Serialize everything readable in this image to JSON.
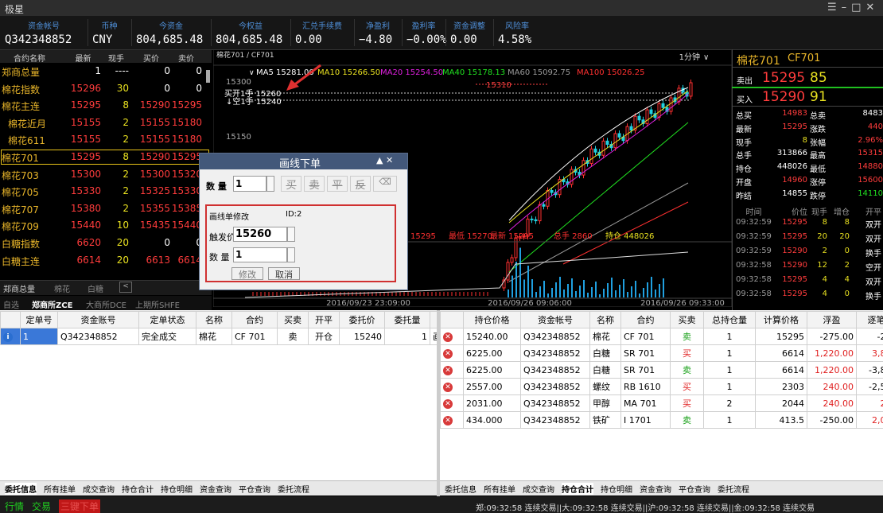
{
  "window": {
    "title": "极星"
  },
  "account": {
    "labels": [
      "资金帐号",
      "币种",
      "今资金",
      "今权益",
      "汇兑手续费",
      "净盈利",
      "盈利率",
      "资金调整",
      "风险率"
    ],
    "values": [
      "Q342348852",
      "CNY",
      "804,685.48",
      "804,685.48",
      "0.00",
      "−4.80",
      "−0.00%",
      "0.00",
      "4.58%"
    ]
  },
  "quotes": {
    "headers": [
      "合约名称",
      "最新",
      "现手",
      "买价",
      "卖价"
    ],
    "rows": [
      [
        "郑商总量",
        "1",
        "----",
        "0",
        "0"
      ],
      [
        "棉花指数",
        "15296",
        "30",
        "0",
        "0"
      ],
      [
        "棉花主连",
        "15295",
        "8",
        "15290",
        "15295"
      ],
      [
        "棉花近月",
        "15155",
        "2",
        "15155",
        "15180"
      ],
      [
        "棉花611",
        "15155",
        "2",
        "15155",
        "15180"
      ],
      [
        "棉花701",
        "15295",
        "8",
        "15290",
        "15295"
      ],
      [
        "棉花703",
        "15300",
        "2",
        "15300",
        "15320"
      ],
      [
        "棉花705",
        "15330",
        "2",
        "15325",
        "15330"
      ],
      [
        "棉花707",
        "15380",
        "2",
        "15355",
        "15385"
      ],
      [
        "棉花709",
        "15440",
        "10",
        "15435",
        "15440"
      ],
      [
        "白糖指数",
        "6620",
        "20",
        "0",
        "0"
      ],
      [
        "白糖主连",
        "6614",
        "20",
        "6613",
        "6614"
      ]
    ]
  },
  "list_tabs": [
    "郑商总量",
    "棉花",
    "白糖"
  ],
  "exchange_tabs": [
    "自选",
    "郑商所ZCE",
    "大商所DCE",
    "上期所SHFE"
  ],
  "chart": {
    "title": "棉花701 / CF701",
    "period": "1分钟",
    "ma": [
      "MA5 15281.00",
      "MA10 15266.50",
      "MA20 15254.50",
      "MA40 15178.13",
      "MA60 15092.75",
      "MA100 15026.25"
    ],
    "price_labels": [
      "15300",
      "15150"
    ],
    "marker_high": "15310",
    "order_buy": "买开1手 15260",
    "order_sell": "↓空1手 15240",
    "info": [
      "15295",
      "最低 15270",
      "最新 15295",
      "总手 2860",
      "持仓 448026"
    ],
    "dates": [
      "2016/09/23 23:09:00",
      "2016/09/26 09:06:00",
      "2016/09/26 09:33:00"
    ]
  },
  "dialog": {
    "title": "画线下单",
    "qty_label": "数 量",
    "qty": "1",
    "buttons": [
      "买",
      "卖",
      "平",
      "反"
    ],
    "modify_title": "画线单修改",
    "id": "ID:2",
    "trigger_label": "触发价",
    "trigger": "15260",
    "qty2_label": "数 量",
    "qty2": "1",
    "ok": "修改",
    "cancel": "取消"
  },
  "quote_panel": {
    "title": "棉花701",
    "code": "CF701",
    "sell_label": "卖出",
    "sell_price": "15295",
    "sell_qty": "85",
    "buy_label": "买入",
    "buy_price": "15290",
    "buy_qty": "91",
    "stats": [
      [
        "总买",
        "14983",
        "总卖",
        "8483"
      ],
      [
        "最新",
        "15295",
        "涨跌",
        "440"
      ],
      [
        "现手",
        "8",
        "张幅",
        "2.96%"
      ],
      [
        "总手",
        "313866",
        "最高",
        "15315"
      ],
      [
        "持仓",
        "448026",
        "最低",
        "14880"
      ],
      [
        "开盘",
        "14960",
        "涨停",
        "15600"
      ],
      [
        "昨结",
        "14855",
        "跌停",
        "14110"
      ]
    ],
    "tick_headers": [
      "时间",
      "价位",
      "现手",
      "增仓",
      "开平"
    ],
    "ticks": [
      [
        "09:32:59",
        "15295",
        "8",
        "8",
        "双开"
      ],
      [
        "09:32:59",
        "15295",
        "20",
        "20",
        "双开"
      ],
      [
        "09:32:59",
        "15290",
        "2",
        "0",
        "换手"
      ],
      [
        "09:32:58",
        "15290",
        "12",
        "2",
        "空开"
      ],
      [
        "09:32:58",
        "15295",
        "4",
        "4",
        "双开"
      ],
      [
        "09:32:58",
        "15295",
        "4",
        "0",
        "换手"
      ]
    ]
  },
  "orders": {
    "headers": [
      "定单号",
      "资金账号",
      "定单状态",
      "名称",
      "合约",
      "买卖",
      "开平",
      "委托价",
      "委托量",
      "委托来源",
      "止"
    ],
    "rows": [
      [
        "1",
        "Q342348852",
        "完全成交",
        "棉花",
        "CF 701",
        "卖",
        "开仓",
        "15240",
        "1",
        "画线下单",
        ""
      ]
    ]
  },
  "positions": {
    "headers": [
      "持仓价格",
      "资金帐号",
      "名称",
      "合约",
      "买卖",
      "总持仓量",
      "计算价格",
      "浮盈",
      "逐笔浮盈",
      "昨结"
    ],
    "rows": [
      [
        "15240.00",
        "Q342348852",
        "棉花",
        "CF 701",
        "卖",
        "1",
        "15295",
        "-275.00",
        "-275.00"
      ],
      [
        "6225.00",
        "Q342348852",
        "白糖",
        "SR 701",
        "买",
        "1",
        "6614",
        "1,220.00",
        "3,890.00"
      ],
      [
        "6225.00",
        "Q342348852",
        "白糖",
        "SR 701",
        "卖",
        "1",
        "6614",
        "1,220.00",
        "-3,890.00"
      ],
      [
        "2557.00",
        "Q342348852",
        "螺纹",
        "RB 1610",
        "买",
        "1",
        "2303",
        "240.00",
        "-2,540.00"
      ],
      [
        "2031.00",
        "Q342348852",
        "甲醇",
        "MA 701",
        "买",
        "2",
        "2044",
        "240.00",
        "260.00"
      ],
      [
        "434.000",
        "Q342348852",
        "铁矿",
        "I 1701",
        "卖",
        "1",
        "413.5",
        "-250.00",
        "2,050.00"
      ]
    ]
  },
  "bottom_tabs_left": [
    "委托信息",
    "所有挂单",
    "成交查询",
    "持仓合计",
    "持仓明细",
    "资金查询",
    "平仓查询",
    "委托流程"
  ],
  "bottom_tabs_right": [
    "委托信息",
    "所有挂单",
    "成交查询",
    "持仓合计",
    "持仓明细",
    "资金查询",
    "平仓查询",
    "委托流程"
  ],
  "status": {
    "buttons": [
      "行情",
      "交易",
      "三键下单"
    ],
    "text": "郑:09:32:58 连续交易||大:09:32:58 连续交易||沪:09:32:58 连续交易||金:09:32:58 连续交易"
  }
}
